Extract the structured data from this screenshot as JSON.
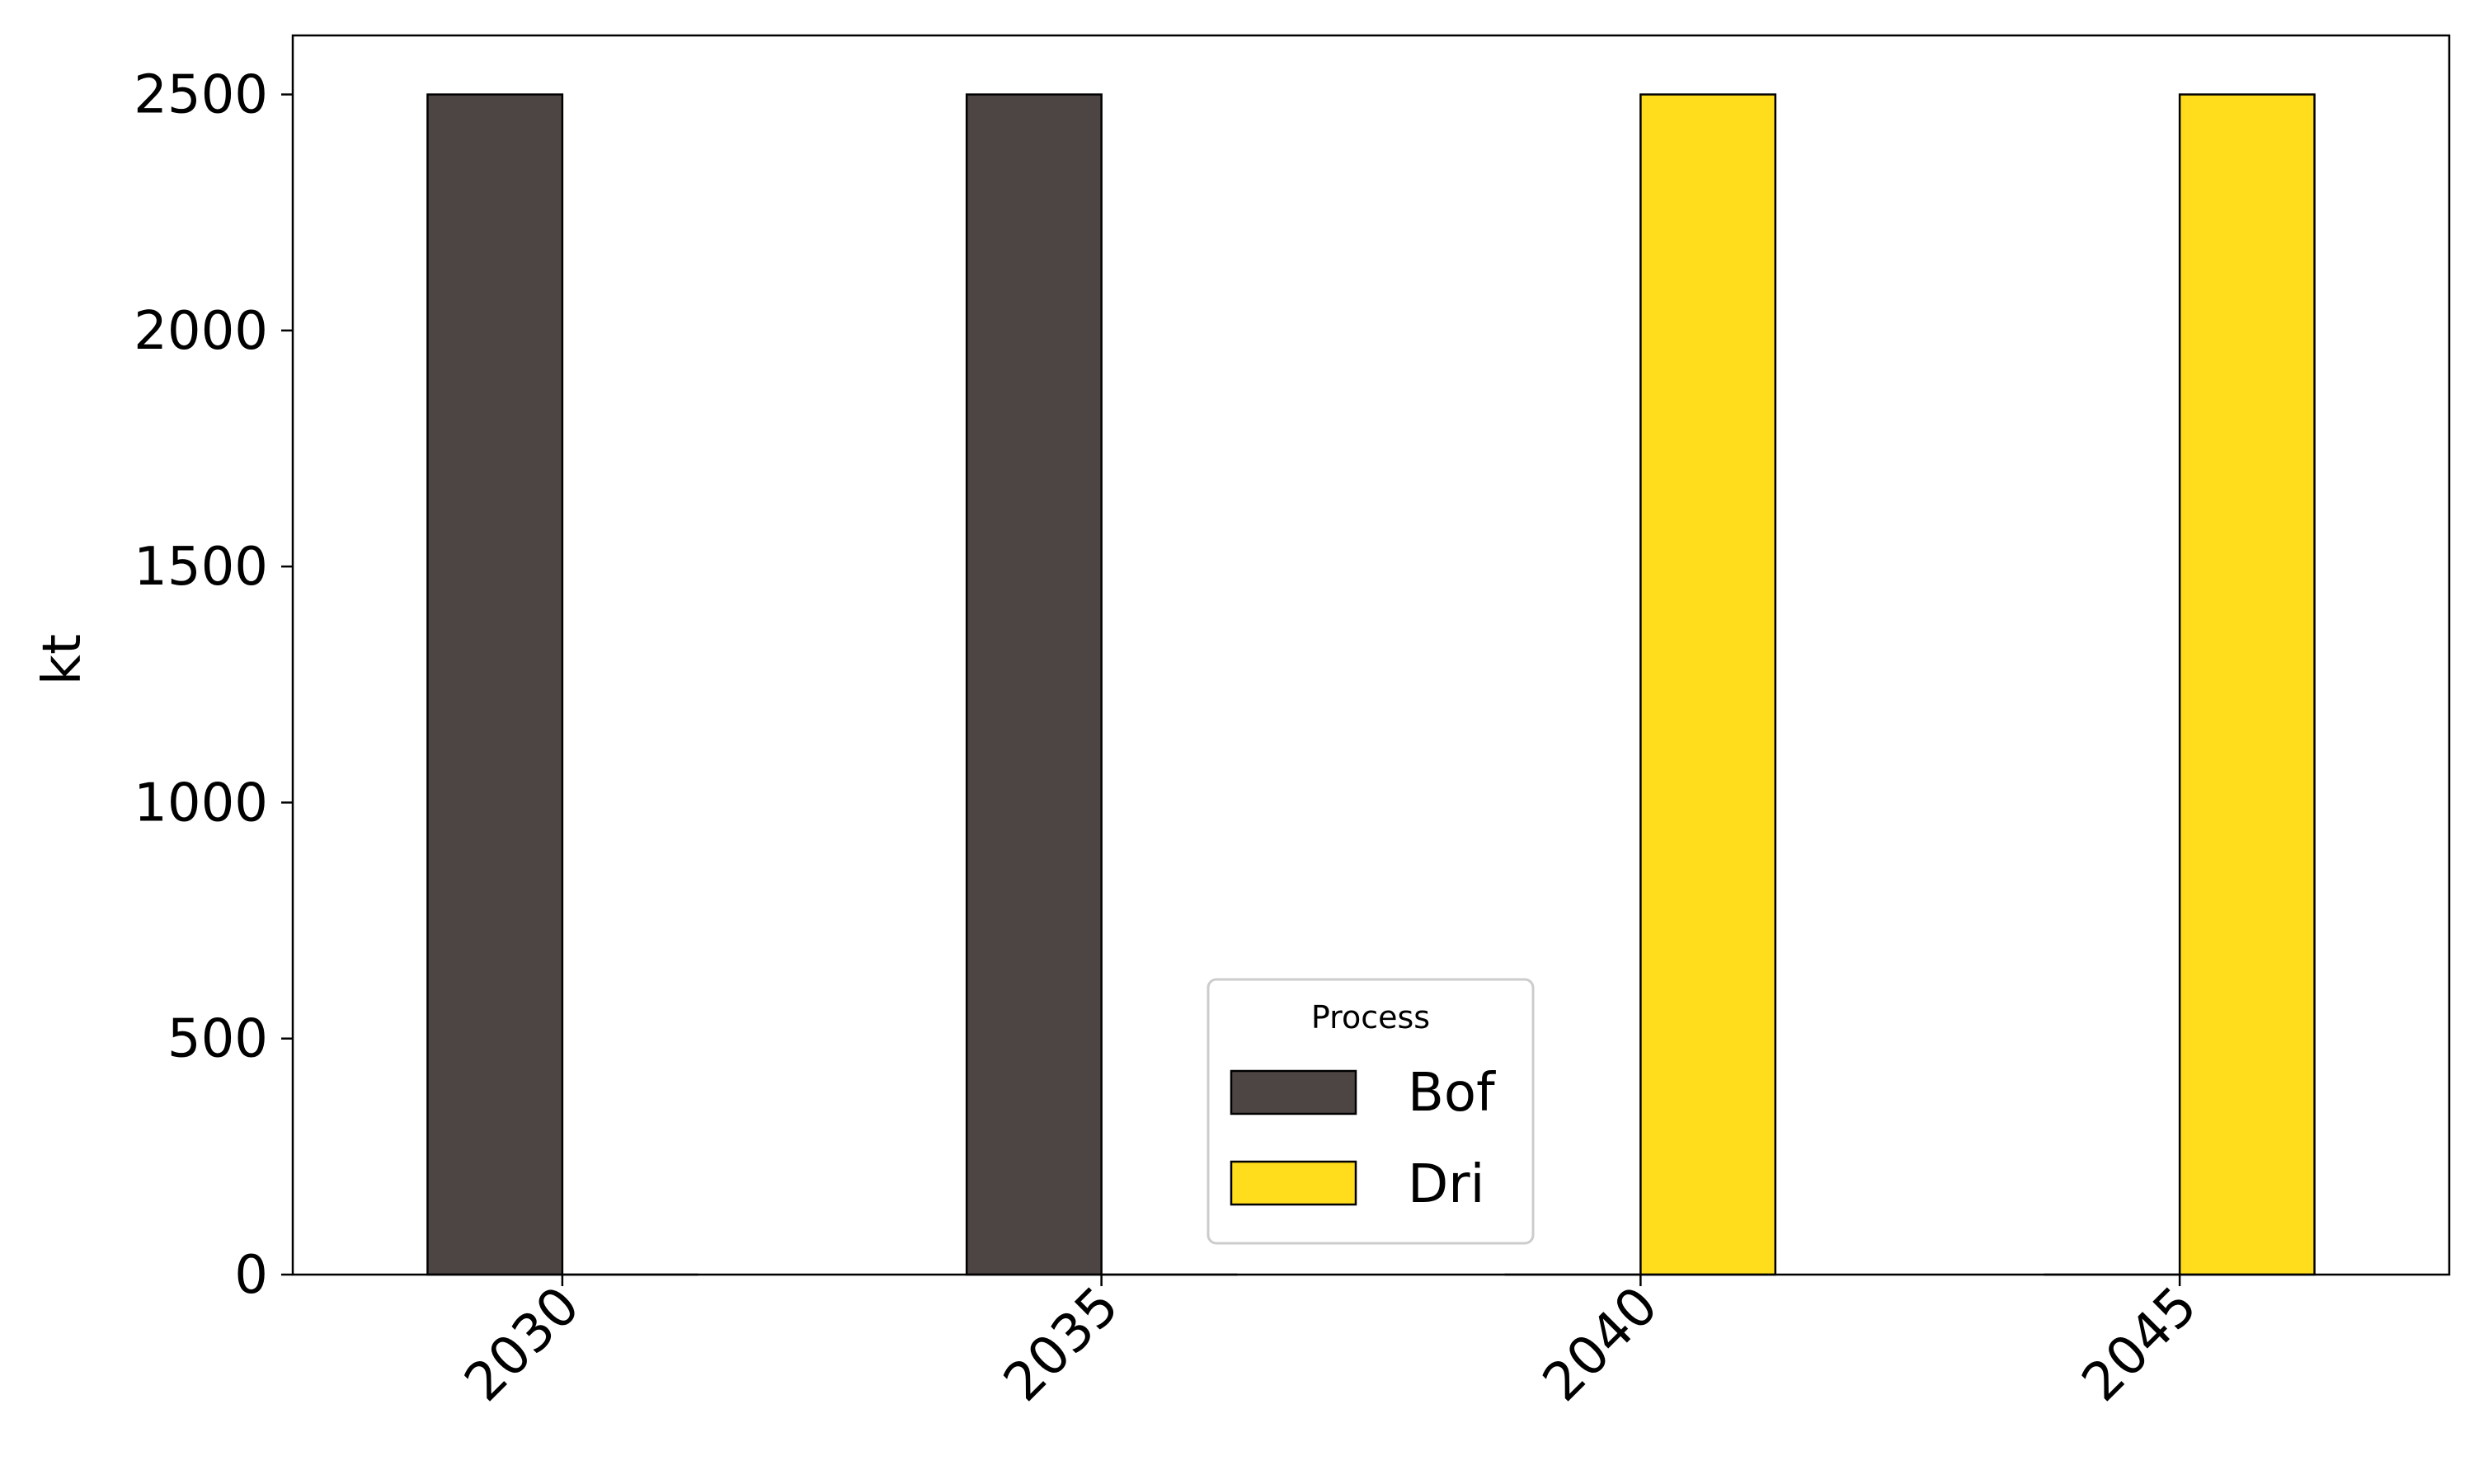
{
  "chart_data": {
    "type": "bar",
    "categories": [
      "2030",
      "2035",
      "2040",
      "2045"
    ],
    "series": [
      {
        "name": "Bof",
        "values": [
          2500,
          2500,
          0,
          0
        ],
        "color": "#4d4544"
      },
      {
        "name": "Dri",
        "values": [
          0,
          0,
          2500,
          2500
        ],
        "color": "#ffdc1c"
      }
    ],
    "xlabel": "",
    "ylabel": "kt",
    "ylim": [
      0,
      2625
    ],
    "yticks": [
      0,
      500,
      1000,
      1500,
      2000,
      2500
    ],
    "grid": false,
    "legend": {
      "title": "Process",
      "position": "lower-center"
    }
  }
}
